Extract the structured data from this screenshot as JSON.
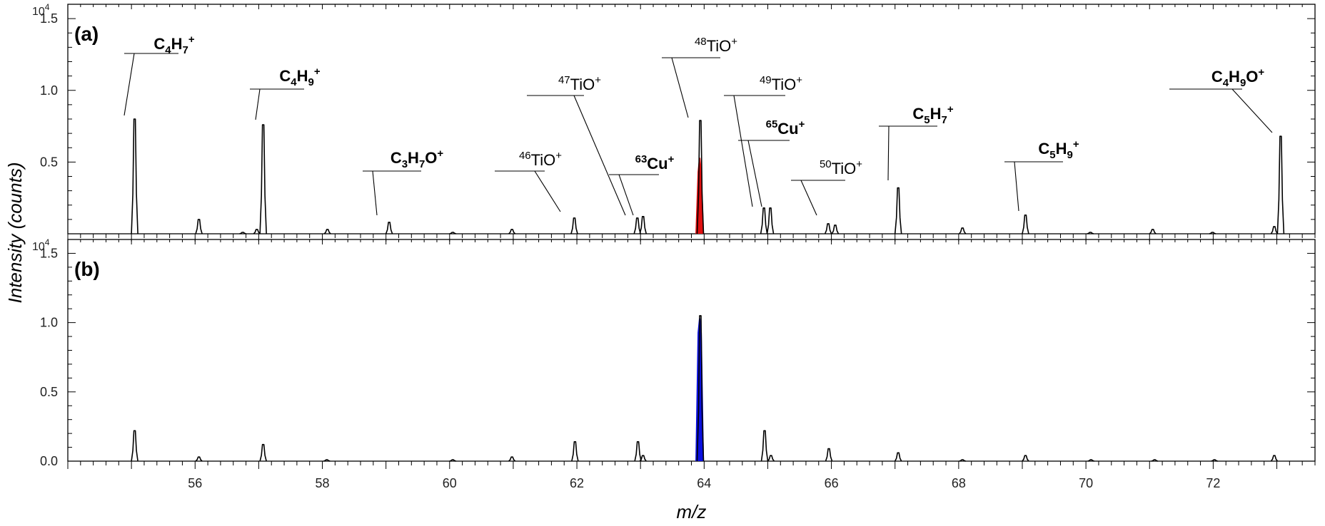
{
  "chart_data": {
    "type": "line",
    "xlabel": "m/z",
    "ylabel": "Intensity (counts)",
    "xlim": [
      54.0,
      73.6
    ],
    "x_ticks": [
      "56",
      "58",
      "60",
      "62",
      "64",
      "66",
      "68",
      "70",
      "72"
    ],
    "y_exponent_base": "10",
    "y_exponent_power": "4",
    "y_unit_scale": 10000,
    "panels": [
      {
        "id": "a",
        "label": "(a)",
        "ylim": [
          0,
          1.6
        ],
        "y_ticks": [
          "0.5",
          "1.0",
          "1.5"
        ],
        "highlight": {
          "mz": 63.93,
          "color": "#e01010",
          "height": 0.53
        },
        "peaks": [
          {
            "mz": 55.05,
            "h": 0.8
          },
          {
            "mz": 56.06,
            "h": 0.1
          },
          {
            "mz": 56.75,
            "h": 0.01
          },
          {
            "mz": 56.97,
            "h": 0.03
          },
          {
            "mz": 57.07,
            "h": 0.76
          },
          {
            "mz": 58.08,
            "h": 0.03
          },
          {
            "mz": 59.05,
            "h": 0.08
          },
          {
            "mz": 60.05,
            "h": 0.01
          },
          {
            "mz": 60.98,
            "h": 0.03
          },
          {
            "mz": 61.96,
            "h": 0.11
          },
          {
            "mz": 62.95,
            "h": 0.11
          },
          {
            "mz": 63.04,
            "h": 0.12
          },
          {
            "mz": 63.94,
            "h": 0.79
          },
          {
            "mz": 64.94,
            "h": 0.18
          },
          {
            "mz": 65.04,
            "h": 0.18
          },
          {
            "mz": 65.95,
            "h": 0.07
          },
          {
            "mz": 66.06,
            "h": 0.06
          },
          {
            "mz": 67.05,
            "h": 0.32
          },
          {
            "mz": 68.06,
            "h": 0.04
          },
          {
            "mz": 69.05,
            "h": 0.13
          },
          {
            "mz": 70.07,
            "h": 0.01
          },
          {
            "mz": 71.05,
            "h": 0.03
          },
          {
            "mz": 71.99,
            "h": 0.01
          },
          {
            "mz": 72.96,
            "h": 0.05
          },
          {
            "mz": 73.06,
            "h": 0.68
          }
        ]
      },
      {
        "id": "b",
        "label": "(b)",
        "ylim": [
          0,
          1.6
        ],
        "y_ticks": [
          "0.0",
          "0.5",
          "1.0",
          "1.5"
        ],
        "highlight": {
          "mz": 63.93,
          "color": "#0a10e0",
          "height": 1.03
        },
        "peaks": [
          {
            "mz": 55.05,
            "h": 0.22
          },
          {
            "mz": 56.06,
            "h": 0.03
          },
          {
            "mz": 57.07,
            "h": 0.12
          },
          {
            "mz": 58.07,
            "h": 0.01
          },
          {
            "mz": 60.05,
            "h": 0.01
          },
          {
            "mz": 60.98,
            "h": 0.03
          },
          {
            "mz": 61.97,
            "h": 0.14
          },
          {
            "mz": 62.96,
            "h": 0.14
          },
          {
            "mz": 63.04,
            "h": 0.04
          },
          {
            "mz": 63.94,
            "h": 1.05
          },
          {
            "mz": 64.95,
            "h": 0.22
          },
          {
            "mz": 65.05,
            "h": 0.04
          },
          {
            "mz": 65.96,
            "h": 0.09
          },
          {
            "mz": 67.05,
            "h": 0.06
          },
          {
            "mz": 68.06,
            "h": 0.01
          },
          {
            "mz": 69.05,
            "h": 0.04
          },
          {
            "mz": 70.08,
            "h": 0.01
          },
          {
            "mz": 71.08,
            "h": 0.01
          },
          {
            "mz": 72.02,
            "h": 0.01
          },
          {
            "mz": 72.96,
            "h": 0.04
          }
        ]
      }
    ],
    "annotations": [
      {
        "id": "C4H7",
        "bold": true,
        "parts": [
          {
            "t": "C"
          },
          {
            "t": "4",
            "s": "sub"
          },
          {
            "t": "H"
          },
          {
            "t": "7",
            "s": "sub"
          },
          {
            "t": "+",
            "s": "sup"
          }
        ],
        "mz": 55.05,
        "peak_h": 0.8
      },
      {
        "id": "C4H9",
        "bold": true,
        "parts": [
          {
            "t": "C"
          },
          {
            "t": "4",
            "s": "sub"
          },
          {
            "t": "H"
          },
          {
            "t": "9",
            "s": "sub"
          },
          {
            "t": "+",
            "s": "sup"
          }
        ],
        "mz": 57.07,
        "peak_h": 0.76
      },
      {
        "id": "C3H7O",
        "bold": true,
        "parts": [
          {
            "t": "C"
          },
          {
            "t": "3",
            "s": "sub"
          },
          {
            "t": "H"
          },
          {
            "t": "7",
            "s": "sub"
          },
          {
            "t": "O"
          },
          {
            "t": "+",
            "s": "sup"
          }
        ],
        "mz": 59.05,
        "peak_h": 0.08
      },
      {
        "id": "46TiO",
        "bold": false,
        "parts": [
          {
            "t": "46",
            "s": "sup"
          },
          {
            "t": "TiO"
          },
          {
            "t": "+",
            "s": "sup"
          }
        ],
        "mz": 61.96,
        "peak_h": 0.11
      },
      {
        "id": "47TiO",
        "bold": false,
        "parts": [
          {
            "t": "47",
            "s": "sup"
          },
          {
            "t": "TiO"
          },
          {
            "t": "+",
            "s": "sup"
          }
        ],
        "mz": 62.95,
        "peak_h": 0.11
      },
      {
        "id": "63Cu",
        "bold": true,
        "parts": [
          {
            "t": "63",
            "s": "sup"
          },
          {
            "t": "Cu"
          },
          {
            "t": "+",
            "s": "sup"
          }
        ],
        "mz": 63.04,
        "peak_h": 0.12
      },
      {
        "id": "48TiO",
        "bold": false,
        "parts": [
          {
            "t": "48",
            "s": "sup"
          },
          {
            "t": "TiO"
          },
          {
            "t": "+",
            "s": "sup"
          }
        ],
        "mz": 63.94,
        "peak_h": 0.79
      },
      {
        "id": "49TiO",
        "bold": false,
        "parts": [
          {
            "t": "49",
            "s": "sup"
          },
          {
            "t": "TiO"
          },
          {
            "t": "+",
            "s": "sup"
          }
        ],
        "mz": 64.94,
        "peak_h": 0.18
      },
      {
        "id": "65Cu",
        "bold": true,
        "parts": [
          {
            "t": "65",
            "s": "sup"
          },
          {
            "t": "Cu"
          },
          {
            "t": "+",
            "s": "sup"
          }
        ],
        "mz": 65.04,
        "peak_h": 0.18
      },
      {
        "id": "50TiO",
        "bold": false,
        "parts": [
          {
            "t": "50",
            "s": "sup"
          },
          {
            "t": "TiO"
          },
          {
            "t": "+",
            "s": "sup"
          }
        ],
        "mz": 65.95,
        "peak_h": 0.07
      },
      {
        "id": "C5H7",
        "bold": true,
        "parts": [
          {
            "t": "C"
          },
          {
            "t": "5",
            "s": "sub"
          },
          {
            "t": "H"
          },
          {
            "t": "7",
            "s": "sub"
          },
          {
            "t": "+",
            "s": "sup"
          }
        ],
        "mz": 67.05,
        "peak_h": 0.32
      },
      {
        "id": "C5H9",
        "bold": true,
        "parts": [
          {
            "t": "C"
          },
          {
            "t": "5",
            "s": "sub"
          },
          {
            "t": "H"
          },
          {
            "t": "9",
            "s": "sub"
          },
          {
            "t": "+",
            "s": "sup"
          }
        ],
        "mz": 69.05,
        "peak_h": 0.13
      },
      {
        "id": "C4H9O",
        "bold": true,
        "parts": [
          {
            "t": "C"
          },
          {
            "t": "4",
            "s": "sub"
          },
          {
            "t": "H"
          },
          {
            "t": "9",
            "s": "sub"
          },
          {
            "t": "O"
          },
          {
            "t": "+",
            "s": "sup"
          }
        ],
        "mz": 73.06,
        "peak_h": 0.68
      }
    ]
  }
}
